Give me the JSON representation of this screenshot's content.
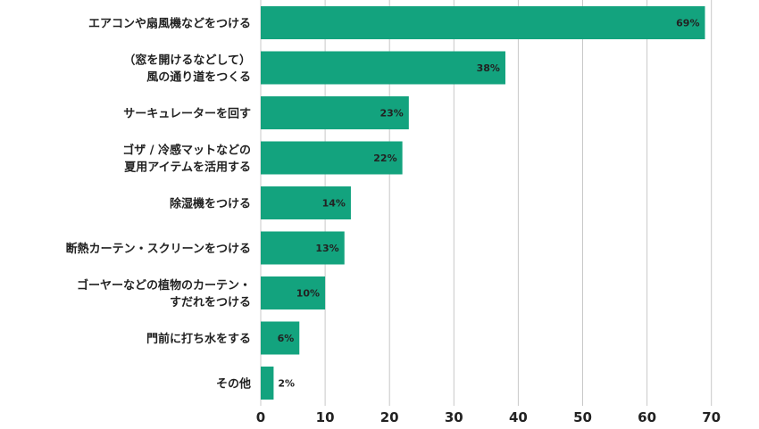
{
  "chart_data": {
    "type": "bar",
    "orientation": "horizontal",
    "categories": [
      [
        "エアコンや扇風機などをつける"
      ],
      [
        "（窓を開けるなどして）",
        "風の通り道をつくる"
      ],
      [
        "サーキュレーターを回す"
      ],
      [
        "ゴザ / 冷感マットなどの",
        "夏用アイテムを活用する"
      ],
      [
        "除湿機をつける"
      ],
      [
        "断熱カーテン・スクリーンをつける"
      ],
      [
        "ゴーヤーなどの植物のカーテン・",
        "すだれをつける"
      ],
      [
        "門前に打ち水をする"
      ],
      [
        "その他"
      ]
    ],
    "values": [
      69,
      38,
      23,
      22,
      14,
      13,
      10,
      6,
      2
    ],
    "value_labels": [
      "69%",
      "38%",
      "23%",
      "22%",
      "14%",
      "13%",
      "10%",
      "6%",
      "2%"
    ],
    "x_ticks": [
      "0",
      "10",
      "20",
      "30",
      "40",
      "50",
      "60",
      "70"
    ],
    "xlim": [
      0,
      70
    ],
    "grid": true,
    "bar_color": "#13a37e",
    "grid_color": "#c8c8c8",
    "text_color": "#222222"
  }
}
